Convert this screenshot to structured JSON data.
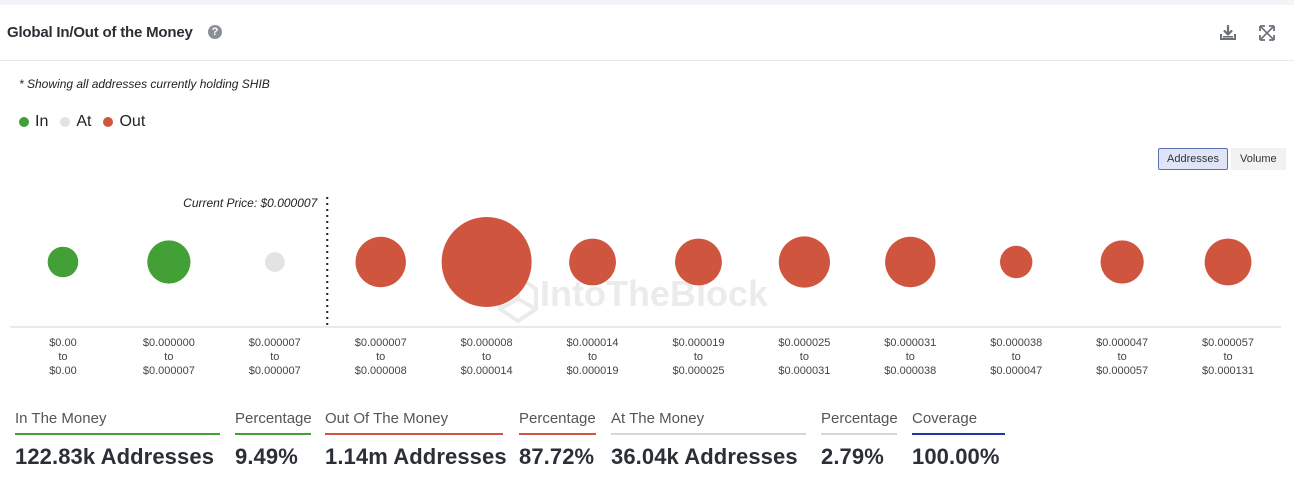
{
  "header": {
    "title": "Global In/Out of the Money",
    "help_icon": "question-circle-icon",
    "download_icon": "download-icon",
    "expand_icon": "expand-icon"
  },
  "note": "* Showing all addresses currently holding SHIB",
  "legend": [
    {
      "label": "In",
      "color": "#43a037"
    },
    {
      "label": "At",
      "color": "#e3e3e3"
    },
    {
      "label": "Out",
      "color": "#cf553f"
    }
  ],
  "toggle": {
    "addresses": "Addresses",
    "volume": "Volume",
    "active": "Addresses"
  },
  "watermark": "IntoTheBlock",
  "chart_data": {
    "type": "bubble",
    "current_price_label": "Current Price: $0.000007",
    "current_price_after_index": 2,
    "series_colors": {
      "in": "#43a037",
      "at": "#e3e3e3",
      "out": "#cf553f"
    },
    "bins": [
      {
        "from": "$0.00",
        "to": "$0.00",
        "status": "in",
        "relative_size": 0.34
      },
      {
        "from": "$0.000000",
        "to": "$0.000007",
        "status": "in",
        "relative_size": 0.48
      },
      {
        "from": "$0.000007",
        "to": "$0.000007",
        "status": "at",
        "relative_size": 0.22
      },
      {
        "from": "$0.000007",
        "to": "$0.000008",
        "status": "out",
        "relative_size": 0.56
      },
      {
        "from": "$0.000008",
        "to": "$0.000014",
        "status": "out",
        "relative_size": 1.0
      },
      {
        "from": "$0.000014",
        "to": "$0.000019",
        "status": "out",
        "relative_size": 0.52
      },
      {
        "from": "$0.000019",
        "to": "$0.000025",
        "status": "out",
        "relative_size": 0.52
      },
      {
        "from": "$0.000025",
        "to": "$0.000031",
        "status": "out",
        "relative_size": 0.57
      },
      {
        "from": "$0.000031",
        "to": "$0.000038",
        "status": "out",
        "relative_size": 0.56
      },
      {
        "from": "$0.000038",
        "to": "$0.000047",
        "status": "out",
        "relative_size": 0.36
      },
      {
        "from": "$0.000047",
        "to": "$0.000057",
        "status": "out",
        "relative_size": 0.48
      },
      {
        "from": "$0.000057",
        "to": "$0.000131",
        "status": "out",
        "relative_size": 0.52
      }
    ],
    "connector": "to"
  },
  "stats": [
    {
      "label": "In The Money",
      "value": "122.83k Addresses",
      "color": "#43a037"
    },
    {
      "label": "Percentage",
      "value": "9.49%",
      "color": "#43a037"
    },
    {
      "label": "Out Of The Money",
      "value": "1.14m Addresses",
      "color": "#cf553f"
    },
    {
      "label": "Percentage",
      "value": "87.72%",
      "color": "#cf553f"
    },
    {
      "label": "At The Money",
      "value": "36.04k Addresses",
      "color": "#d6d6d6"
    },
    {
      "label": "Percentage",
      "value": "2.79%",
      "color": "#d6d6d6"
    },
    {
      "label": "Coverage",
      "value": "100.00%",
      "color": "#2336a8"
    }
  ]
}
